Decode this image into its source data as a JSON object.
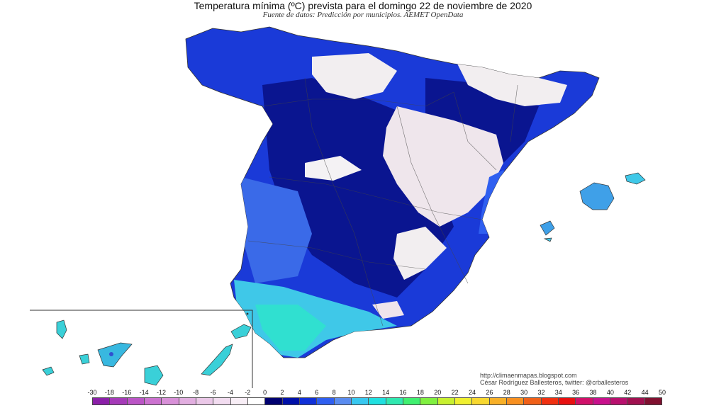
{
  "header": {
    "title": "Temperatura mínima (ºC) prevista para el domingo 22 de noviembre de 2020",
    "subtitle": "Fuente de datos: Predicción por municipios. AEMET OpenData"
  },
  "credits": {
    "url": "http://climaenmapas.blogspot.com",
    "author": "César Rodríguez Ballesteros, twitter: @crballesteros"
  },
  "legend": {
    "labels": [
      "-30",
      "-18",
      "-16",
      "-14",
      "-12",
      "-10",
      "-8",
      "-6",
      "-4",
      "-2",
      "0",
      "2",
      "4",
      "6",
      "8",
      "10",
      "12",
      "14",
      "16",
      "18",
      "20",
      "22",
      "24",
      "26",
      "28",
      "30",
      "32",
      "34",
      "36",
      "38",
      "40",
      "42",
      "44",
      "50"
    ],
    "colors": [
      "#8b1fa8",
      "#a53ab8",
      "#bb55c6",
      "#cc72d0",
      "#d890d8",
      "#e2aee0",
      "#ebc8e8",
      "#f2dcf0",
      "#f8eef6",
      "#ffffff",
      "#000070",
      "#0010a8",
      "#1030d8",
      "#2f5ff0",
      "#5a8cf0",
      "#38c8f0",
      "#20e0e0",
      "#30e8b0",
      "#40f070",
      "#80f040",
      "#c8f030",
      "#f0f030",
      "#f8d830",
      "#f8b028",
      "#f89020",
      "#f06018",
      "#f03010",
      "#e81010",
      "#d0106a",
      "#c8108c",
      "#b8106e",
      "#a01050",
      "#801030"
    ]
  },
  "map_colors": {
    "coast_fill": "#1a3ad8",
    "interior_deep": "#0a1590",
    "cold_interior": "#f2eef0",
    "south_mild": "#3fc8e8",
    "canary": "#3ad0d8"
  }
}
